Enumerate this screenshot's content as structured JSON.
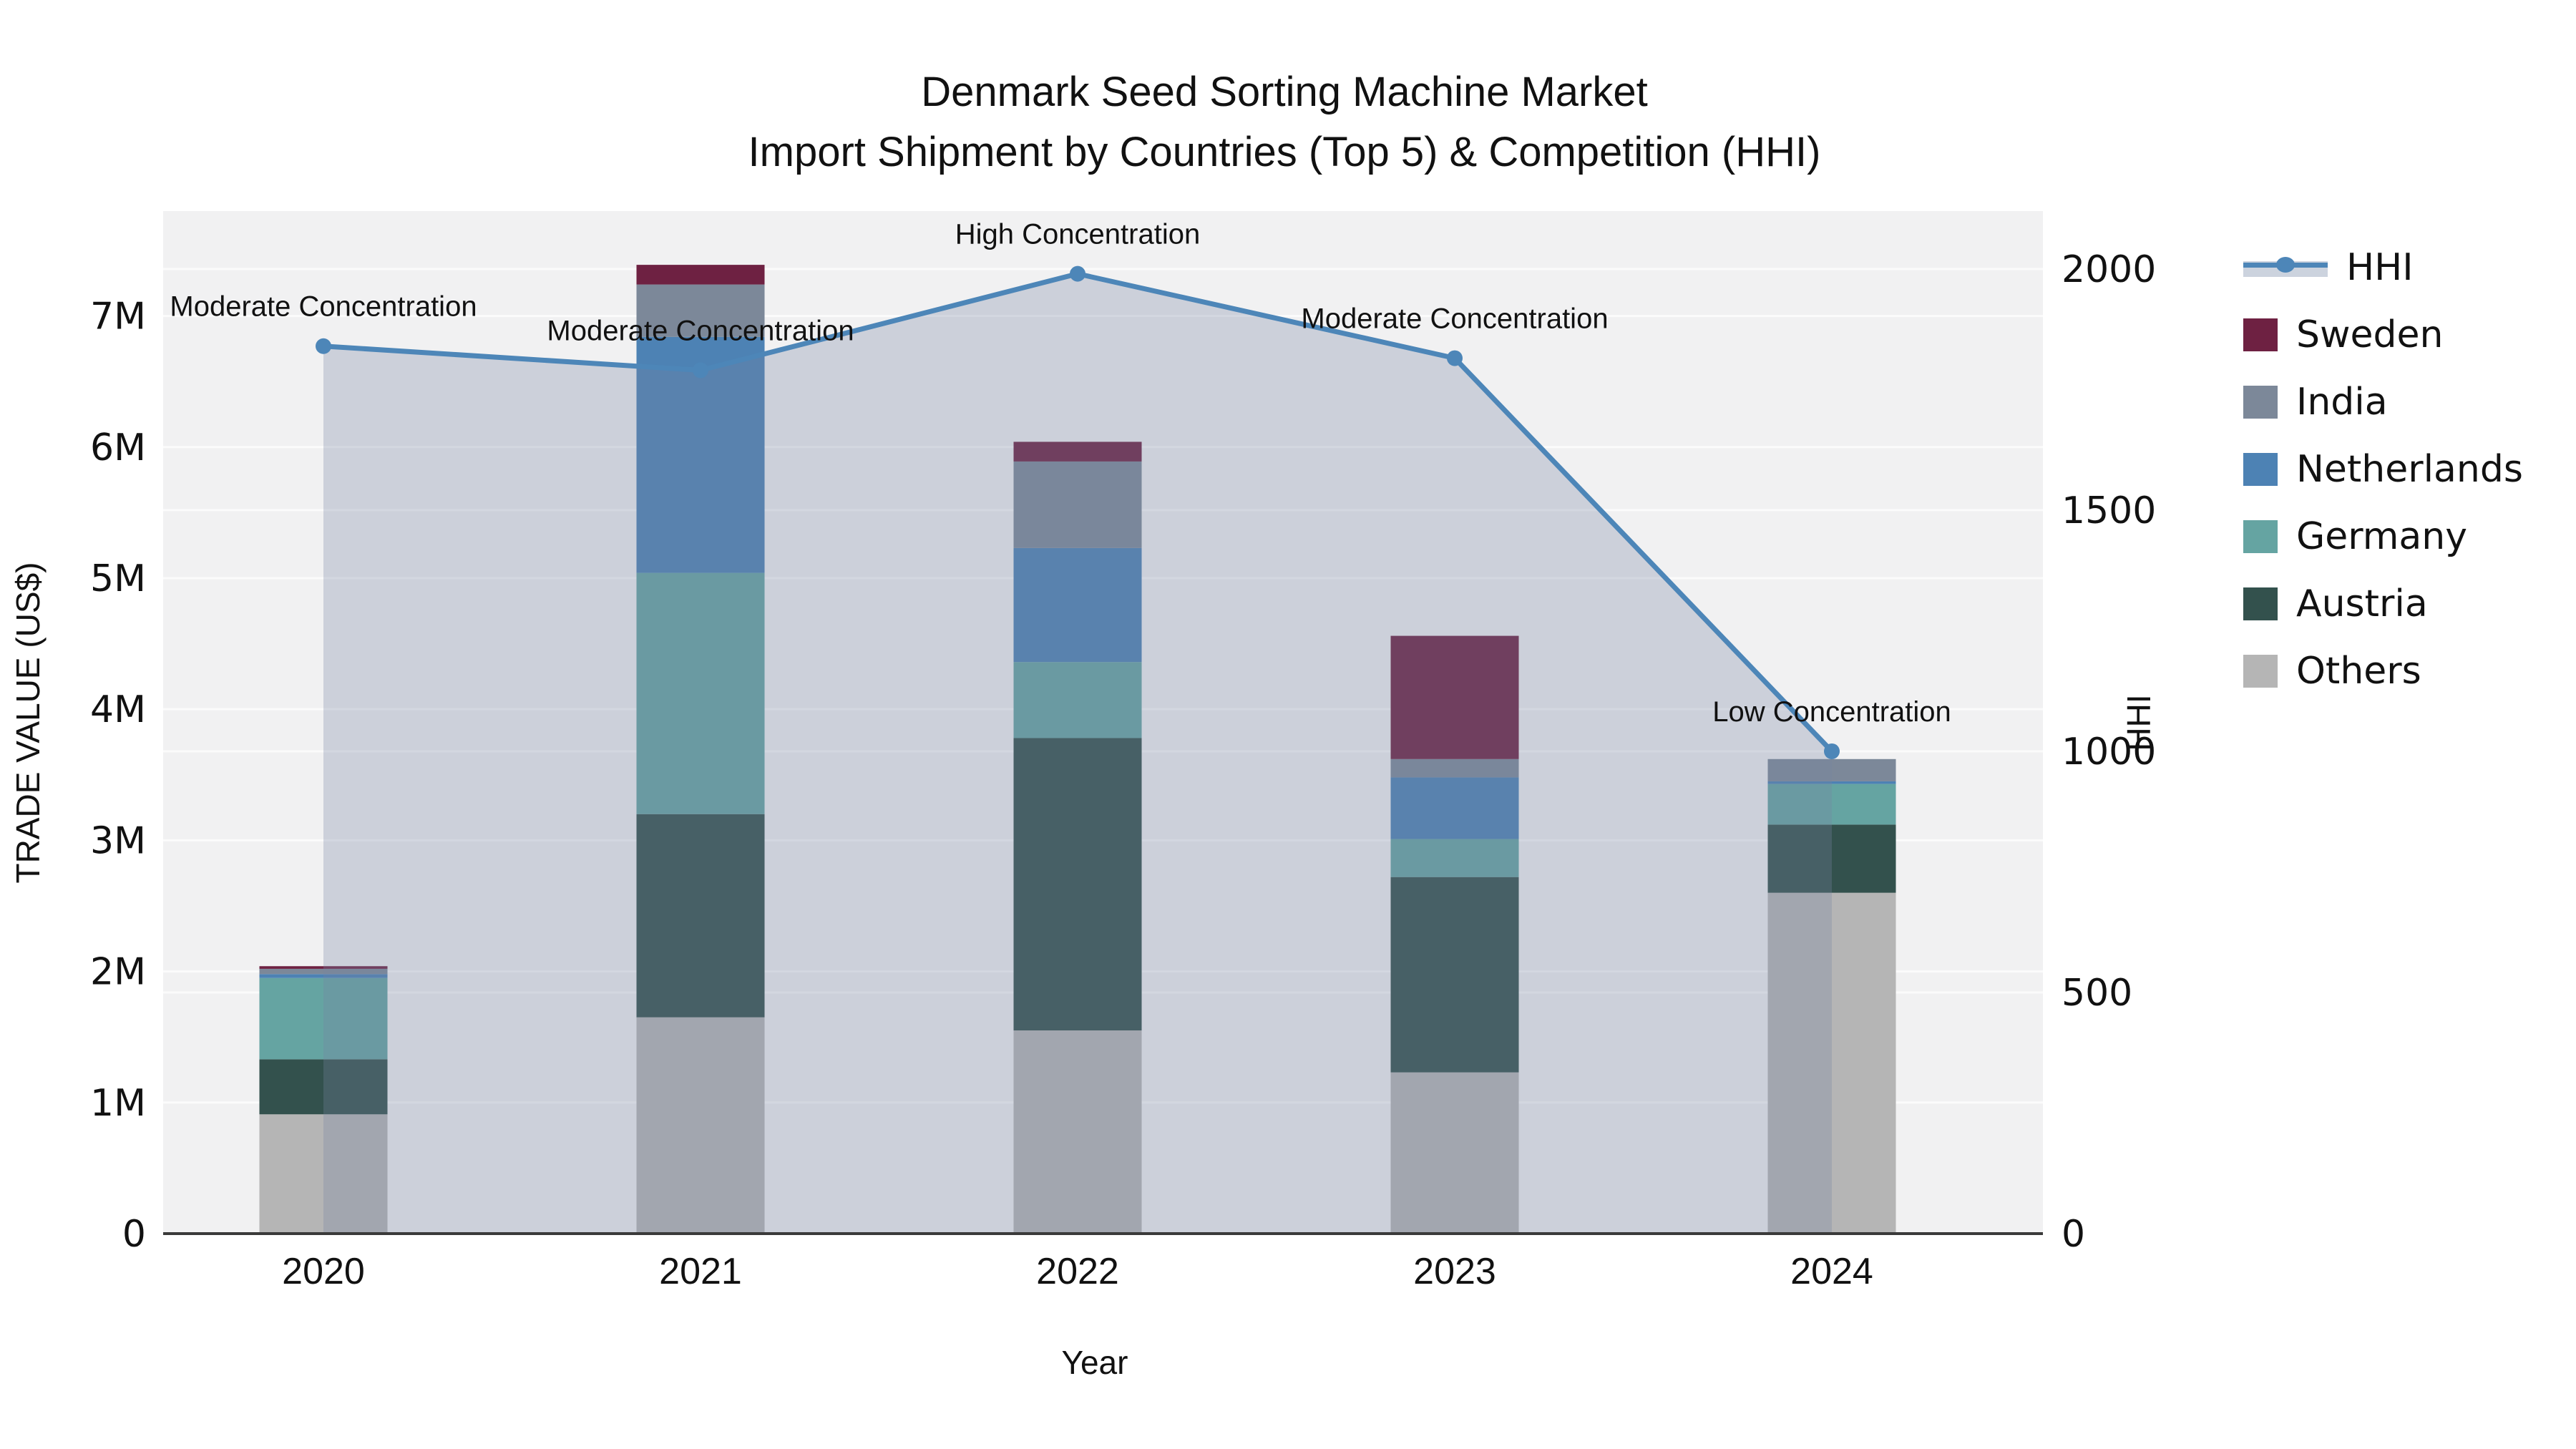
{
  "title_line1": "Denmark Seed Sorting Machine Market",
  "title_line2": "Import Shipment by Countries (Top 5) & Competition (HHI)",
  "left_axis_title": "TRADE VALUE (US$)",
  "right_axis_title": "HHI",
  "x_axis_title": "Year",
  "colors": {
    "hhi_line": "#4d86b8",
    "hhi_fill": "rgba(118,133,162,0.30)",
    "hhi_legend_band": "#ccd3de",
    "plot_bg": "#f1f1f2",
    "gridline": "#fbfbfb",
    "axis_line": "#3a3a3a",
    "Sweden": "#6e2142",
    "India": "#7c8899",
    "Netherlands": "#4d82b4",
    "Germany": "#65a4a2",
    "Austria": "#33514d",
    "Others": "#b5b5b5"
  },
  "legend": {
    "line_entry": "HHI",
    "entries": [
      "Sweden",
      "India",
      "Netherlands",
      "Germany",
      "Austria",
      "Others"
    ]
  },
  "chart_data": {
    "type": "combo: stacked bar (left axis) + line with area fill (right axis)",
    "categories": [
      "2020",
      "2021",
      "2022",
      "2023",
      "2024"
    ],
    "series": [
      {
        "name": "Sweden",
        "values": [
          0.02,
          0.15,
          0.15,
          0.94,
          0.0
        ]
      },
      {
        "name": "India",
        "values": [
          0.04,
          0.4,
          0.66,
          0.14,
          0.17
        ]
      },
      {
        "name": "Netherlands",
        "values": [
          0.03,
          1.8,
          0.87,
          0.47,
          0.02
        ]
      },
      {
        "name": "Germany",
        "values": [
          0.62,
          1.84,
          0.58,
          0.29,
          0.31
        ]
      },
      {
        "name": "Austria",
        "values": [
          0.42,
          1.55,
          2.23,
          1.49,
          0.52
        ]
      },
      {
        "name": "Others",
        "values": [
          0.91,
          1.65,
          1.55,
          1.23,
          2.6
        ]
      }
    ],
    "stack_order_bottom_to_top": [
      "Others",
      "Austria",
      "Germany",
      "Netherlands",
      "India",
      "Sweden"
    ],
    "bar_totals_M": [
      2.04,
      7.39,
      6.04,
      4.56,
      3.62
    ],
    "line": {
      "name": "HHI",
      "values": [
        1840,
        1790,
        1990,
        1815,
        1000
      ]
    },
    "annotations": [
      {
        "category": "2020",
        "text": "Moderate Concentration"
      },
      {
        "category": "2021",
        "text": "Moderate Concentration"
      },
      {
        "category": "2022",
        "text": "High Concentration"
      },
      {
        "category": "2023",
        "text": "Moderate Concentration"
      },
      {
        "category": "2024",
        "text": "Low Concentration"
      }
    ],
    "title": "Denmark Seed Sorting Machine Market\nImport Shipment by Countries (Top 5) & Competition (HHI)",
    "xlabel": "Year",
    "ylabel": "TRADE VALUE (US$)",
    "y2label": "HHI",
    "ylim_M": [
      0,
      7.8
    ],
    "y2lim": [
      0,
      2120
    ],
    "yticks": [
      "0",
      "1M",
      "2M",
      "3M",
      "4M",
      "5M",
      "6M",
      "7M"
    ],
    "ytick_values_M": [
      0,
      1,
      2,
      3,
      4,
      5,
      6,
      7
    ],
    "y2ticks": [
      "0",
      "500",
      "1000",
      "1500",
      "2000"
    ],
    "y2tick_values": [
      0,
      500,
      1000,
      1500,
      2000
    ],
    "grid": "horizontal gridlines for both axes",
    "legend_position": "outside right"
  }
}
